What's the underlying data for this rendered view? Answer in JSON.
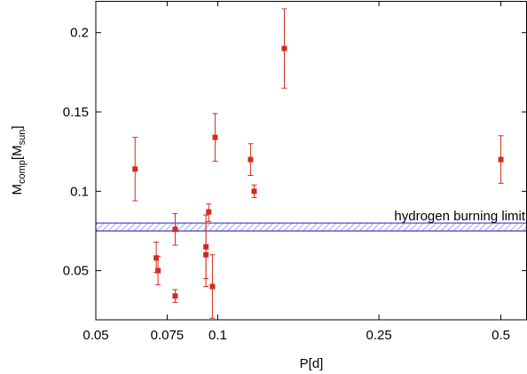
{
  "chart_data": {
    "type": "scatter",
    "xlabel": "P[d]",
    "ylabel": {
      "base": "M",
      "sub1": "comp",
      "mid": "[M",
      "sub2": "sun",
      "end": "]"
    },
    "xscale": "log",
    "xlim": [
      0.05,
      0.58
    ],
    "ylim": [
      0.019,
      0.22
    ],
    "xticks": [
      {
        "value": 0.05,
        "label": "0.05"
      },
      {
        "value": 0.075,
        "label": "0.075"
      },
      {
        "value": 0.1,
        "label": "0.1"
      },
      {
        "value": 0.25,
        "label": "0.25"
      },
      {
        "value": 0.5,
        "label": "0.5"
      }
    ],
    "yticks": [
      {
        "value": 0.05,
        "label": "0.05"
      },
      {
        "value": 0.1,
        "label": "0.1"
      },
      {
        "value": 0.15,
        "label": "0.15"
      },
      {
        "value": 0.2,
        "label": "0.2"
      }
    ],
    "grid": false,
    "point_color": "#d62a1e",
    "points": [
      {
        "x": 0.0625,
        "y": 0.114,
        "ylow": 0.094,
        "yhigh": 0.134
      },
      {
        "x": 0.0705,
        "y": 0.058,
        "ylow": 0.049,
        "yhigh": 0.068
      },
      {
        "x": 0.0712,
        "y": 0.05,
        "ylow": 0.041,
        "yhigh": 0.059
      },
      {
        "x": 0.0785,
        "y": 0.076,
        "ylow": 0.066,
        "yhigh": 0.086
      },
      {
        "x": 0.0785,
        "y": 0.034,
        "ylow": 0.03,
        "yhigh": 0.038
      },
      {
        "x": 0.0935,
        "y": 0.065,
        "ylow": 0.045,
        "yhigh": 0.085
      },
      {
        "x": 0.0935,
        "y": 0.06,
        "ylow": 0.04,
        "yhigh": 0.08
      },
      {
        "x": 0.095,
        "y": 0.087,
        "ylow": 0.081,
        "yhigh": 0.092
      },
      {
        "x": 0.097,
        "y": 0.04,
        "ylow": 0.02,
        "yhigh": 0.06
      },
      {
        "x": 0.0985,
        "y": 0.134,
        "ylow": 0.119,
        "yhigh": 0.149
      },
      {
        "x": 0.1205,
        "y": 0.12,
        "ylow": 0.11,
        "yhigh": 0.13
      },
      {
        "x": 0.123,
        "y": 0.1,
        "ylow": 0.096,
        "yhigh": 0.104
      },
      {
        "x": 0.146,
        "y": 0.19,
        "ylow": 0.165,
        "yhigh": 0.215
      },
      {
        "x": 0.5,
        "y": 0.12,
        "ylow": 0.105,
        "yhigh": 0.135
      }
    ],
    "band": {
      "ylow": 0.075,
      "yhigh": 0.08,
      "color": "#3a3ad8",
      "label": "hydrogen burning limit"
    }
  }
}
